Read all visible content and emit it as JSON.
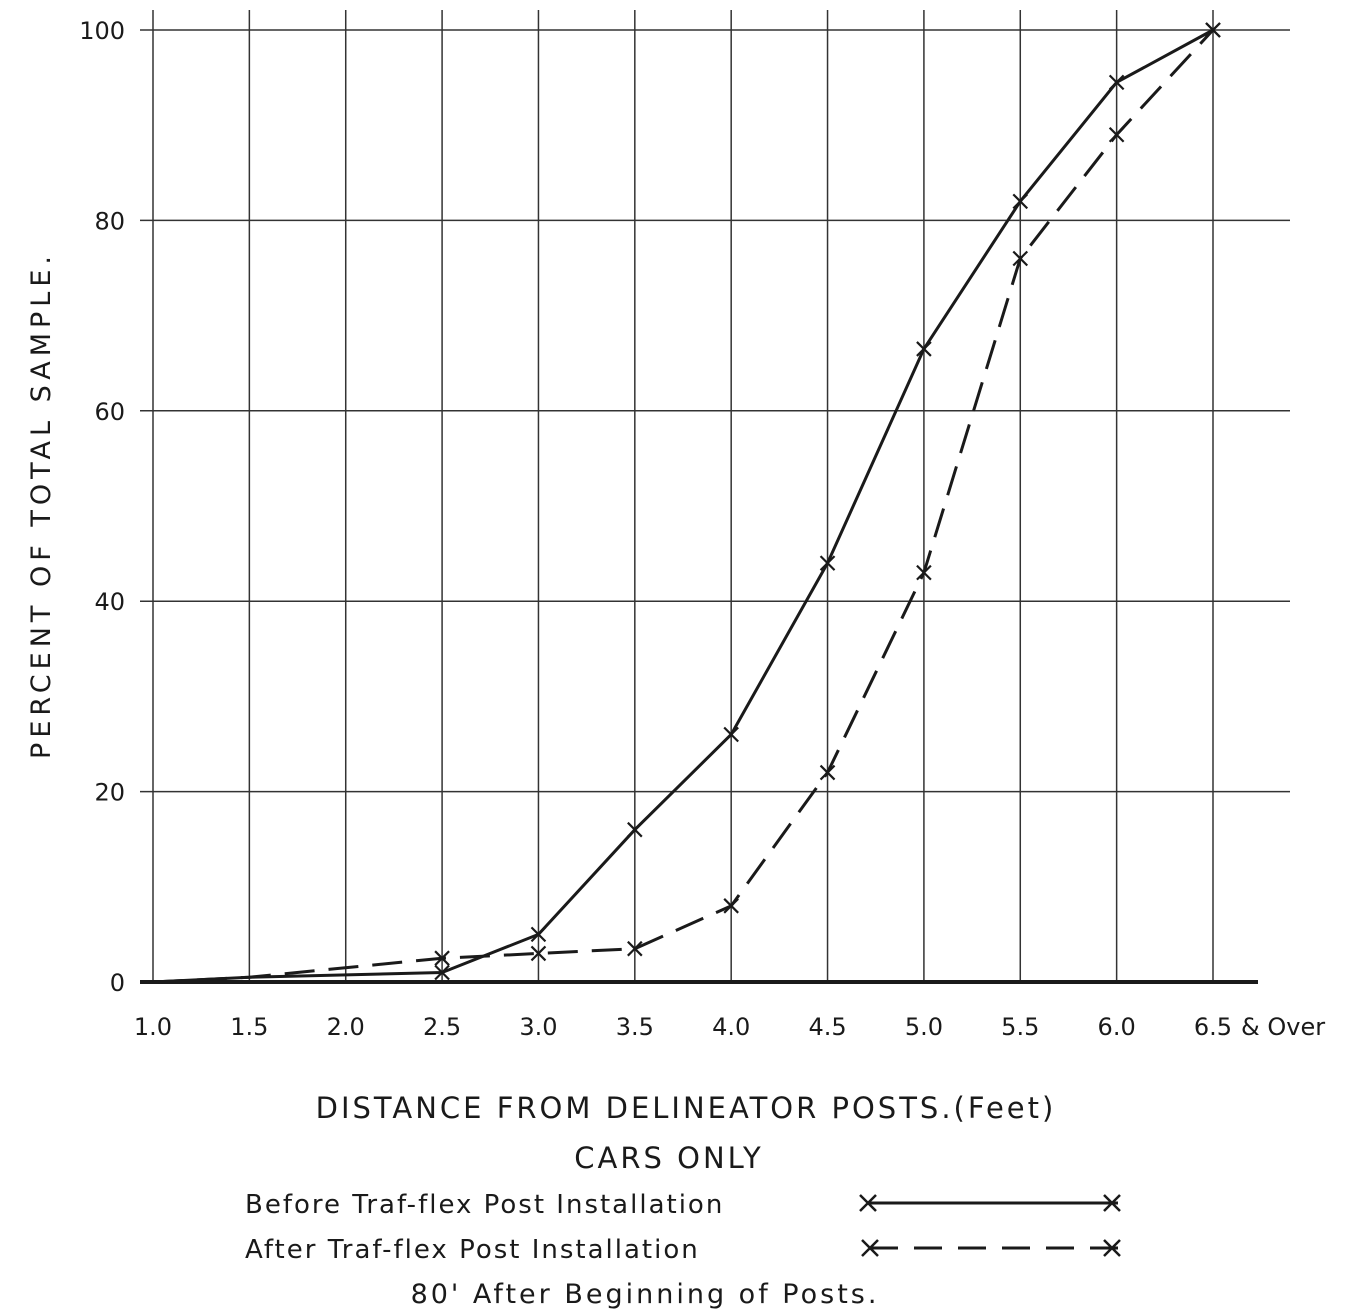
{
  "chart_data": {
    "type": "line",
    "ylabel": "PERCENT OF TOTAL SAMPLE.",
    "xlabel": "DISTANCE FROM DELINEATOR POSTS.(Feet)",
    "subtitle": "CARS ONLY",
    "caption": "80' After Beginning of Posts.",
    "x_ticks": [
      "1.0",
      "1.5",
      "2.0",
      "2.5",
      "3.0",
      "3.5",
      "4.0",
      "4.5",
      "5.0",
      "5.5",
      "6.0",
      "6.5"
    ],
    "x_last_tick_suffix": "& Over",
    "y_ticks": [
      "0",
      "20",
      "40",
      "60",
      "80",
      "100"
    ],
    "xlim": [
      1.0,
      6.5
    ],
    "ylim": [
      0,
      100
    ],
    "grid": true,
    "legend_position": "bottom-center",
    "series": [
      {
        "name": "Before Traf-flex Post Installation",
        "style": "solid",
        "x": [
          1.0,
          1.5,
          2.5,
          3.0,
          3.5,
          4.0,
          4.5,
          5.0,
          5.5,
          6.0,
          6.5
        ],
        "y": [
          0,
          0.5,
          1,
          5,
          16,
          26,
          44,
          66.5,
          82,
          94.5,
          100
        ]
      },
      {
        "name": "After Traf-flex Post Installation",
        "style": "dashed",
        "x": [
          1.0,
          1.5,
          2.5,
          3.0,
          3.5,
          4.0,
          4.5,
          5.0,
          5.5,
          6.0,
          6.5
        ],
        "y": [
          0,
          0.5,
          2.5,
          3,
          3.5,
          8,
          22,
          43,
          76,
          89,
          100
        ]
      }
    ],
    "colors": {
      "ink": "#1a1a1a",
      "grid": "#333333"
    }
  }
}
